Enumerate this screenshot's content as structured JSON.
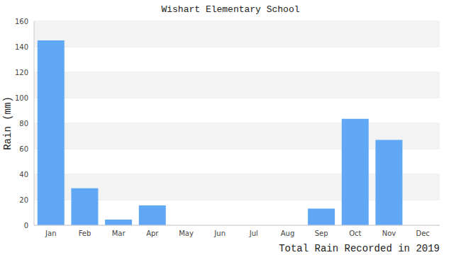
{
  "chart_data": {
    "type": "bar",
    "title": "Wishart Elementary School",
    "y_label": "Rain (mm)",
    "x_label": "Total Rain Recorded in 2019",
    "categories": [
      "Jan",
      "Feb",
      "Mar",
      "Apr",
      "May",
      "Jun",
      "Jul",
      "Aug",
      "Sep",
      "Oct",
      "Nov",
      "Dec"
    ],
    "values": [
      145,
      29,
      4.5,
      15.5,
      0,
      0,
      0,
      0,
      13,
      83.5,
      67,
      0
    ],
    "color": "#60a8f5",
    "ylim": [
      0,
      160
    ],
    "yticks": [
      0,
      20,
      40,
      60,
      80,
      100,
      120,
      140,
      160
    ],
    "grid": true
  }
}
